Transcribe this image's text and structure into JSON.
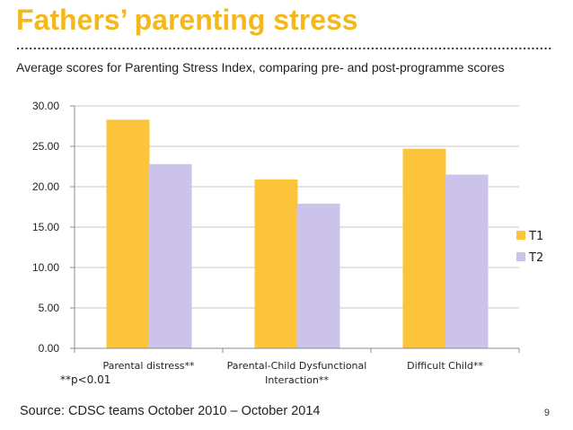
{
  "slide": {
    "title": "Fathers’ parenting stress",
    "subtitle": "Average scores for Parenting Stress Index, comparing pre- and post-programme scores",
    "note": "**p<0.01",
    "source": "Source: CDSC teams October 2010 – October 2014",
    "page_number": "9",
    "accent_color": "#f5b81c"
  },
  "chart_data": {
    "type": "bar",
    "categories": [
      "Parental distress**",
      "Parental-Child Dysfunctional Interaction**",
      "Difficult Child**"
    ],
    "series": [
      {
        "name": "T1",
        "color": "#fbc43a",
        "values": [
          28.3,
          20.9,
          24.7
        ]
      },
      {
        "name": "T2",
        "color": "#ccc3ea",
        "values": [
          22.8,
          17.9,
          21.5
        ]
      }
    ],
    "ylim": [
      0,
      30
    ],
    "yticks": [
      "0.00",
      "5.00",
      "10.00",
      "15.00",
      "20.00",
      "25.00",
      "30.00"
    ],
    "grid": true,
    "legend_position": "right"
  }
}
